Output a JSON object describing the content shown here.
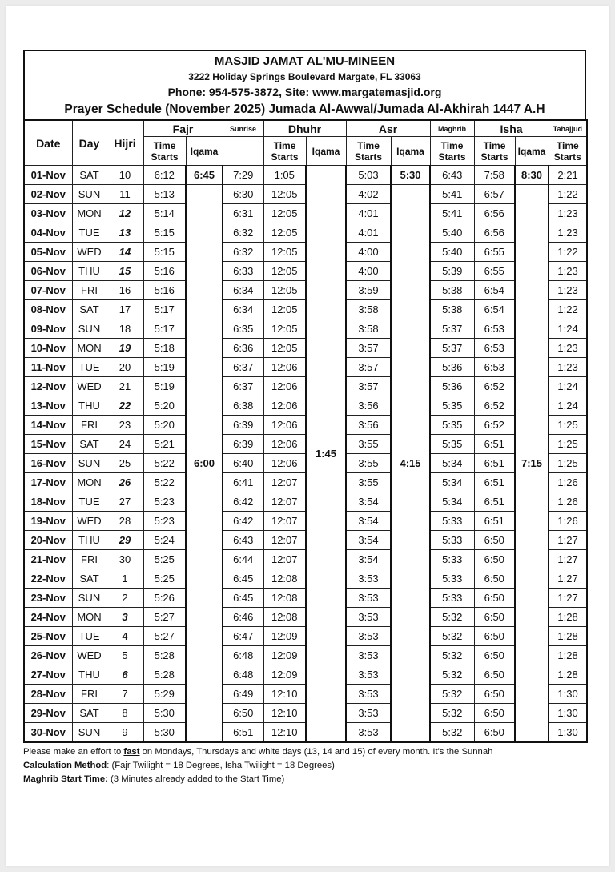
{
  "header": {
    "title": "MASJID JAMAT AL'MU-MINEEN",
    "address": "3222 Holiday Springs Boulevard Margate, FL 33063",
    "contact": "Phone: 954-575-3872, Site: www.margatemasjid.org",
    "schedule_title": "Prayer Schedule (November 2025) Jumada Al-Awwal/Jumada Al-Akhirah 1447 A.H"
  },
  "columns": {
    "date": "Date",
    "day": "Day",
    "hijri": "Hijri",
    "fajr": "Fajr",
    "sunrise": "Sunrise",
    "dhuhr": "Dhuhr",
    "asr": "Asr",
    "maghrib": "Maghrib",
    "isha": "Isha",
    "tahajjud": "Tahajjud",
    "time_starts": "Time Starts",
    "iqama": "Iqama"
  },
  "first_row_iqama": {
    "fajr": "6:45",
    "asr": "5:30",
    "isha": "8:30"
  },
  "merged_iqama": {
    "fajr": "6:00",
    "dhuhr": "1:45",
    "asr": "4:15",
    "isha": "7:15"
  },
  "rows": [
    [
      "01-Nov",
      "SAT",
      "10",
      "6:12",
      "7:29",
      "1:05",
      "5:03",
      "6:43",
      "7:58",
      "2:21"
    ],
    [
      "02-Nov",
      "SUN",
      "11",
      "5:13",
      "6:30",
      "12:05",
      "4:02",
      "5:41",
      "6:57",
      "1:22"
    ],
    [
      "03-Nov",
      "MON",
      "12",
      "5:14",
      "6:31",
      "12:05",
      "4:01",
      "5:41",
      "6:56",
      "1:23"
    ],
    [
      "04-Nov",
      "TUE",
      "13",
      "5:15",
      "6:32",
      "12:05",
      "4:01",
      "5:40",
      "6:56",
      "1:23"
    ],
    [
      "05-Nov",
      "WED",
      "14",
      "5:15",
      "6:32",
      "12:05",
      "4:00",
      "5:40",
      "6:55",
      "1:22"
    ],
    [
      "06-Nov",
      "THU",
      "15",
      "5:16",
      "6:33",
      "12:05",
      "4:00",
      "5:39",
      "6:55",
      "1:23"
    ],
    [
      "07-Nov",
      "FRI",
      "16",
      "5:16",
      "6:34",
      "12:05",
      "3:59",
      "5:38",
      "6:54",
      "1:23"
    ],
    [
      "08-Nov",
      "SAT",
      "17",
      "5:17",
      "6:34",
      "12:05",
      "3:58",
      "5:38",
      "6:54",
      "1:22"
    ],
    [
      "09-Nov",
      "SUN",
      "18",
      "5:17",
      "6:35",
      "12:05",
      "3:58",
      "5:37",
      "6:53",
      "1:24"
    ],
    [
      "10-Nov",
      "MON",
      "19",
      "5:18",
      "6:36",
      "12:05",
      "3:57",
      "5:37",
      "6:53",
      "1:23"
    ],
    [
      "11-Nov",
      "TUE",
      "20",
      "5:19",
      "6:37",
      "12:06",
      "3:57",
      "5:36",
      "6:53",
      "1:23"
    ],
    [
      "12-Nov",
      "WED",
      "21",
      "5:19",
      "6:37",
      "12:06",
      "3:57",
      "5:36",
      "6:52",
      "1:24"
    ],
    [
      "13-Nov",
      "THU",
      "22",
      "5:20",
      "6:38",
      "12:06",
      "3:56",
      "5:35",
      "6:52",
      "1:24"
    ],
    [
      "14-Nov",
      "FRI",
      "23",
      "5:20",
      "6:39",
      "12:06",
      "3:56",
      "5:35",
      "6:52",
      "1:25"
    ],
    [
      "15-Nov",
      "SAT",
      "24",
      "5:21",
      "6:39",
      "12:06",
      "3:55",
      "5:35",
      "6:51",
      "1:25"
    ],
    [
      "16-Nov",
      "SUN",
      "25",
      "5:22",
      "6:40",
      "12:06",
      "3:55",
      "5:34",
      "6:51",
      "1:25"
    ],
    [
      "17-Nov",
      "MON",
      "26",
      "5:22",
      "6:41",
      "12:07",
      "3:55",
      "5:34",
      "6:51",
      "1:26"
    ],
    [
      "18-Nov",
      "TUE",
      "27",
      "5:23",
      "6:42",
      "12:07",
      "3:54",
      "5:34",
      "6:51",
      "1:26"
    ],
    [
      "19-Nov",
      "WED",
      "28",
      "5:23",
      "6:42",
      "12:07",
      "3:54",
      "5:33",
      "6:51",
      "1:26"
    ],
    [
      "20-Nov",
      "THU",
      "29",
      "5:24",
      "6:43",
      "12:07",
      "3:54",
      "5:33",
      "6:50",
      "1:27"
    ],
    [
      "21-Nov",
      "FRI",
      "30",
      "5:25",
      "6:44",
      "12:07",
      "3:54",
      "5:33",
      "6:50",
      "1:27"
    ],
    [
      "22-Nov",
      "SAT",
      "1",
      "5:25",
      "6:45",
      "12:08",
      "3:53",
      "5:33",
      "6:50",
      "1:27"
    ],
    [
      "23-Nov",
      "SUN",
      "2",
      "5:26",
      "6:45",
      "12:08",
      "3:53",
      "5:33",
      "6:50",
      "1:27"
    ],
    [
      "24-Nov",
      "MON",
      "3",
      "5:27",
      "6:46",
      "12:08",
      "3:53",
      "5:32",
      "6:50",
      "1:28"
    ],
    [
      "25-Nov",
      "TUE",
      "4",
      "5:27",
      "6:47",
      "12:09",
      "3:53",
      "5:32",
      "6:50",
      "1:28"
    ],
    [
      "26-Nov",
      "WED",
      "5",
      "5:28",
      "6:48",
      "12:09",
      "3:53",
      "5:32",
      "6:50",
      "1:28"
    ],
    [
      "27-Nov",
      "THU",
      "6",
      "5:28",
      "6:48",
      "12:09",
      "3:53",
      "5:32",
      "6:50",
      "1:28"
    ],
    [
      "28-Nov",
      "FRI",
      "7",
      "5:29",
      "6:49",
      "12:10",
      "3:53",
      "5:32",
      "6:50",
      "1:30"
    ],
    [
      "29-Nov",
      "SAT",
      "8",
      "5:30",
      "6:50",
      "12:10",
      "3:53",
      "5:32",
      "6:50",
      "1:30"
    ],
    [
      "30-Nov",
      "SUN",
      "9",
      "5:30",
      "6:51",
      "12:10",
      "3:53",
      "5:32",
      "6:50",
      "1:30"
    ]
  ],
  "notes": {
    "fast_before": "Please make an effort to ",
    "fast_word": "fast",
    "fast_after": " on Mondays, Thursdays and white days (13, 14 and 15) of every month. It's the Sunnah",
    "calc_label": "Calculation Method",
    "calc_text": ": (Fajr Twilight = 18 Degrees, Isha Twilight = 18 Degrees)",
    "maghrib_label": "Maghrib Start Time:",
    "maghrib_text": " (3 Minutes already added to the Start Time)"
  }
}
